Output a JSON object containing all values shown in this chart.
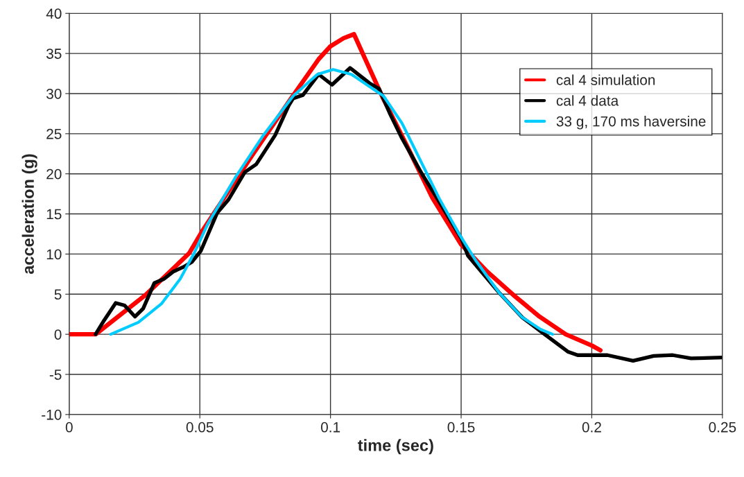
{
  "chart_data": {
    "type": "line",
    "xlabel": "time (sec)",
    "ylabel": "acceleration (g)",
    "xlim": [
      0,
      0.25
    ],
    "xticks": [
      0,
      0.05,
      0.1,
      0.15,
      0.2,
      0.25
    ],
    "ylim": [
      -10,
      40
    ],
    "yticks": [
      -10,
      -5,
      0,
      5,
      10,
      15,
      20,
      25,
      30,
      35,
      40
    ],
    "grid": true,
    "legend": "top right",
    "marker": "none",
    "line_style": "solid",
    "series": [
      {
        "name": "cal 4 simulation",
        "color": "#ff0000",
        "x": [
          0,
          0.0101,
          0.0292,
          0.0459,
          0.0512,
          0.0698,
          0.0849,
          0.0955,
          0.1,
          0.105,
          0.109,
          0.1133,
          0.12,
          0.13,
          0.139,
          0.15,
          0.16,
          0.17,
          0.18,
          0.19,
          0.2,
          0.2033
        ],
        "values": [
          0,
          0,
          4.9,
          10.1,
          13,
          22.2,
          29.4,
          34.3,
          35.9,
          36.9,
          37.4,
          34.3,
          29.5,
          23,
          17,
          11.2,
          7.8,
          4.9,
          2.2,
          0,
          -1.4,
          -2
        ]
      },
      {
        "name": "cal 4 data",
        "color": "#000000",
        "x": [
          0.0101,
          0.0133,
          0.0178,
          0.0212,
          0.0252,
          0.0283,
          0.0326,
          0.0363,
          0.0398,
          0.0438,
          0.0469,
          0.0504,
          0.0566,
          0.061,
          0.0672,
          0.0716,
          0.0788,
          0.084,
          0.0857,
          0.0894,
          0.0955,
          0.1006,
          0.1075,
          0.1149,
          0.1186,
          0.1229,
          0.1274,
          0.135,
          0.1407,
          0.15,
          0.1526,
          0.1645,
          0.1734,
          0.1807,
          0.191,
          0.1946,
          0.206,
          0.2158,
          0.2237,
          0.231,
          0.238,
          0.25
        ],
        "values": [
          0,
          1.7,
          3.9,
          3.6,
          2.2,
          3.2,
          6.4,
          6.9,
          7.8,
          8.4,
          9,
          10.4,
          15.1,
          16.8,
          20.2,
          21.2,
          24.8,
          28.5,
          29.4,
          29.8,
          32.4,
          31.1,
          33.2,
          31.3,
          30.6,
          27.4,
          24.4,
          20,
          17,
          12,
          9.8,
          5.2,
          2.1,
          0.3,
          -2.2,
          -2.6,
          -2.6,
          -3.3,
          -2.7,
          -2.6,
          -3,
          -2.9
        ]
      },
      {
        "name": "33 g, 170 ms haversine",
        "color": "#00ccff",
        "x": [
          0.0159,
          0.0265,
          0.0353,
          0.0425,
          0.0478,
          0.0531,
          0.0637,
          0.0743,
          0.0857,
          0.095,
          0.101,
          0.108,
          0.1203,
          0.1274,
          0.1415,
          0.1494,
          0.1558,
          0.1645,
          0.1734,
          0.1805,
          0.185
        ],
        "values": [
          0,
          1.5,
          3.8,
          6.9,
          10.1,
          13.8,
          19.6,
          24.8,
          29.7,
          32.4,
          33,
          32.4,
          29.7,
          26.3,
          17,
          12.4,
          9.1,
          5.2,
          2.1,
          0.6,
          0
        ]
      }
    ]
  }
}
